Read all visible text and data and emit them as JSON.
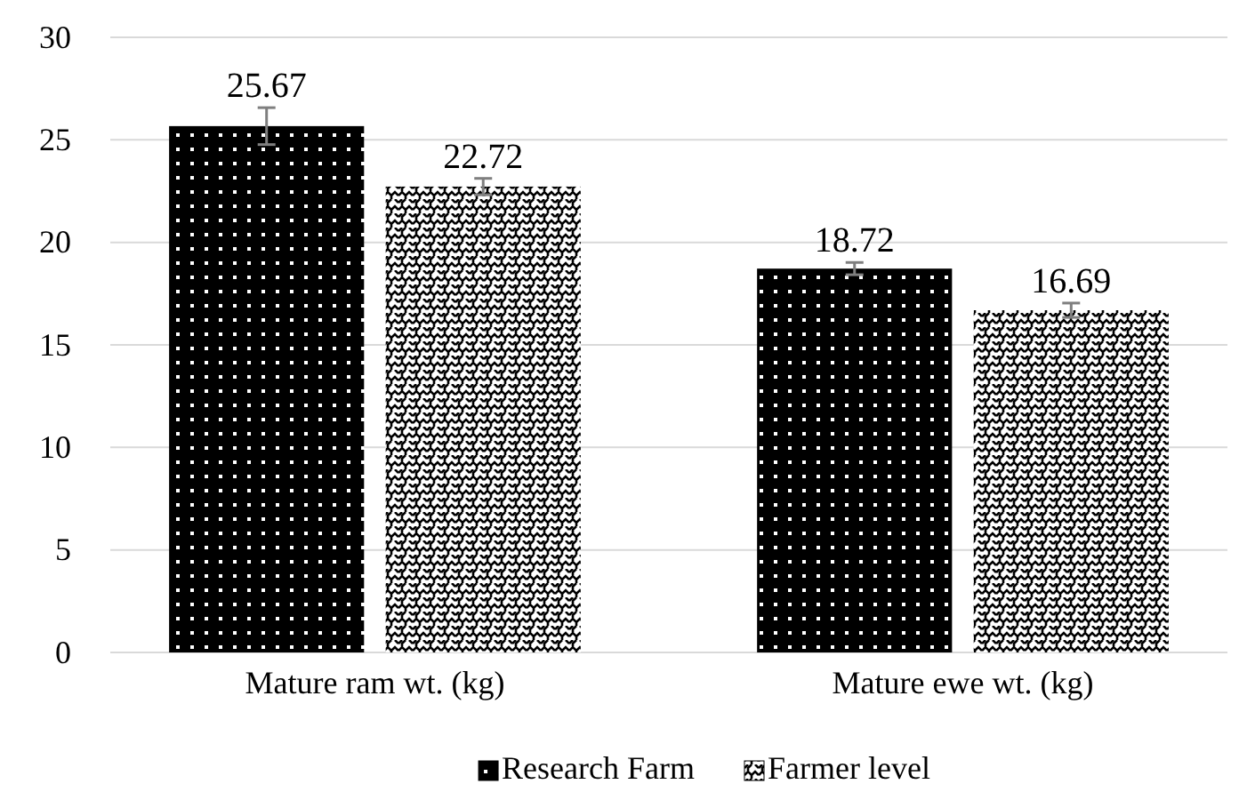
{
  "chart_data": {
    "type": "bar",
    "categories": [
      "Mature ram wt. (kg)",
      "Mature ewe wt. (kg)"
    ],
    "series": [
      {
        "name": "Research Farm",
        "color": "#000000",
        "values": [
          25.67,
          18.72
        ],
        "errors": [
          0.9,
          0.3
        ]
      },
      {
        "name": "Farmer level",
        "color": "#000000",
        "values": [
          22.72,
          16.69
        ],
        "errors": [
          0.4,
          0.35
        ]
      }
    ],
    "ylim": [
      0,
      30
    ],
    "yticks": [
      0,
      5,
      10,
      15,
      20,
      25,
      30
    ],
    "grid": "y",
    "legend": "bottom",
    "data_labels": true
  }
}
